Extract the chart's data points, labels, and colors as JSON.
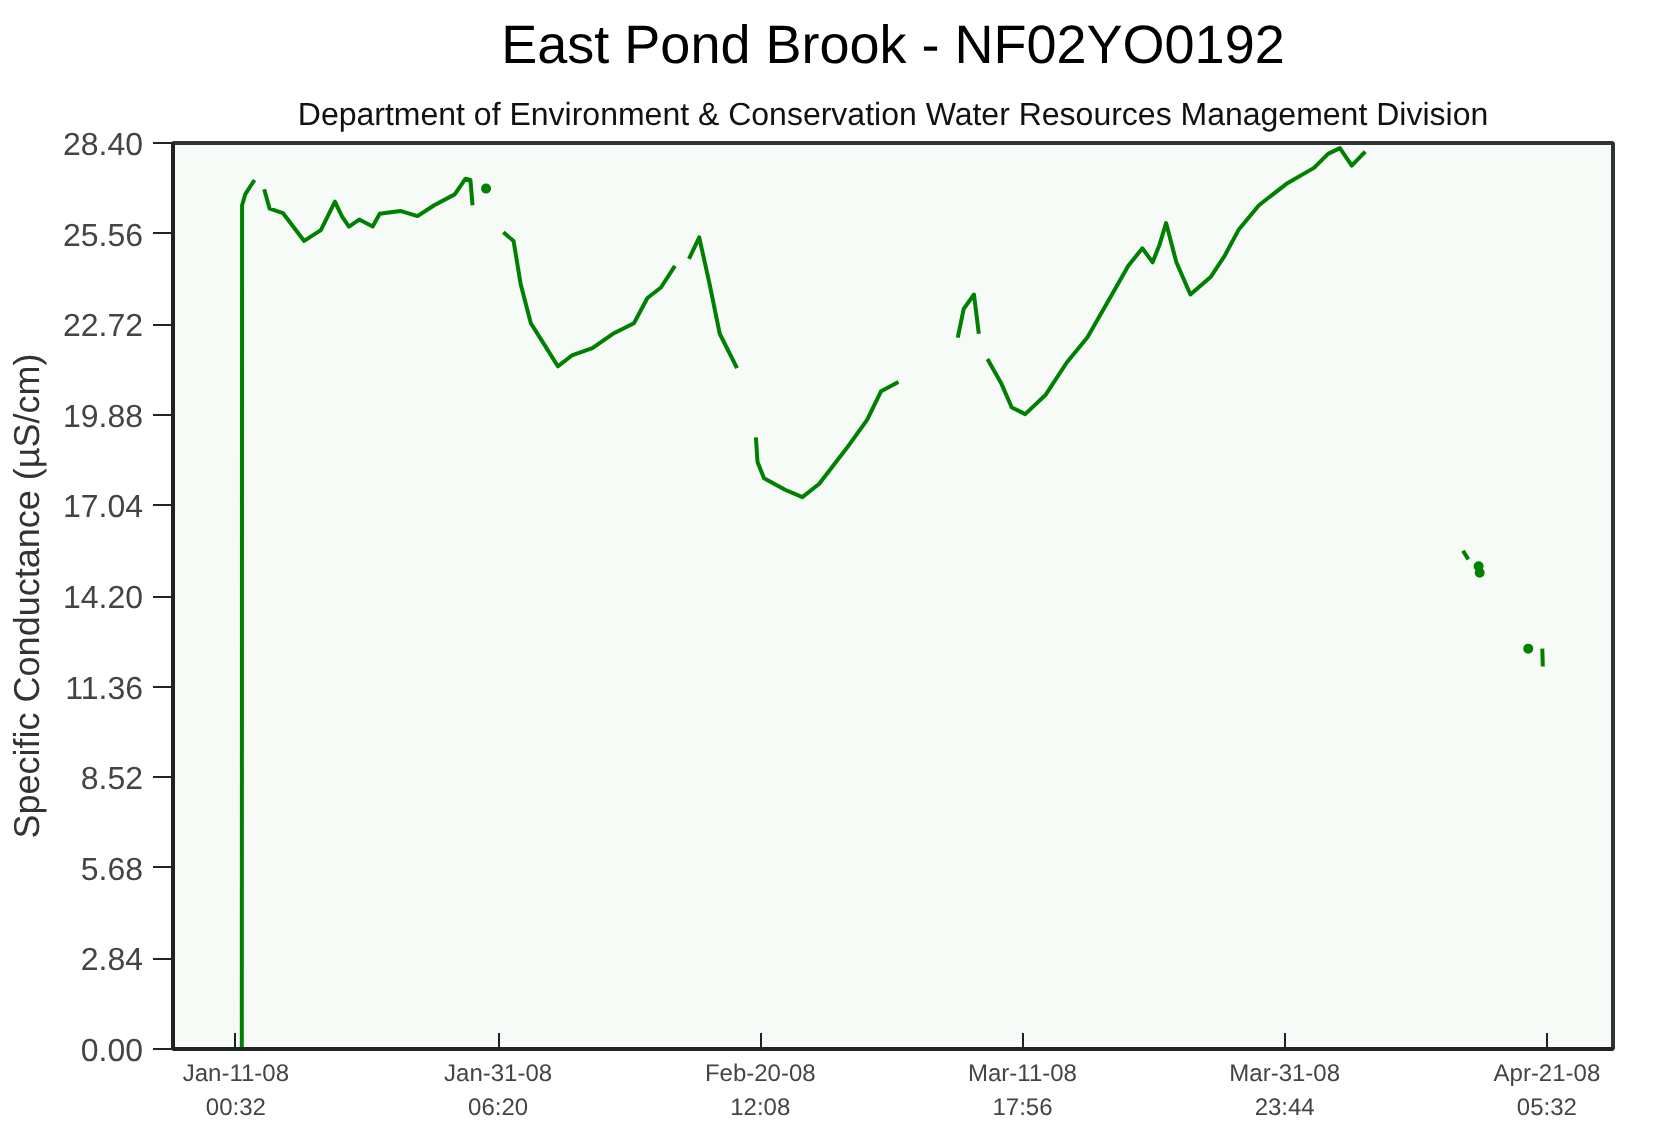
{
  "chart_data": {
    "type": "line",
    "title": "East Pond Brook - NF02YO0192",
    "subtitle": "Department of Environment & Conservation Water Resources Management Division",
    "ylabel": "Specific Conductance (µS/cm)",
    "x": [
      "2008-01-11T11:30",
      "2008-01-11T12:00",
      "2008-01-11T18:00",
      "2008-01-12T11:00",
      "2008-01-12T20:00",
      "2008-01-13T05:00",
      "2008-01-13T15:00",
      "2008-01-14T16:00",
      "2008-01-16T07:00",
      "2008-01-17T14:00",
      "2008-01-18T16:00",
      "2008-01-19T05:00",
      "2008-01-19T18:00",
      "2008-01-20T13:00",
      "2008-01-21T14:00",
      "2008-01-22T03:00",
      "2008-01-23T17:00",
      "2008-01-25T01:00",
      "2008-01-26T08:00",
      "2008-01-27T22:00",
      "2008-01-28T18:00",
      "2008-01-29T03:00",
      "2008-01-29T07:00",
      "2008-01-30T08:00",
      "2008-01-31T16:00",
      "2008-02-01T11:00",
      "2008-02-02T00:00",
      "2008-02-02T19:00",
      "2008-02-03T20:00",
      "2008-02-04T21:00",
      "2008-02-05T23:00",
      "2008-02-07T13:00",
      "2008-02-09T03:00",
      "2008-02-10T18:00",
      "2008-02-11T19:00",
      "2008-02-12T20:00",
      "2008-02-13T22:00",
      "2008-02-14T11:00",
      "2008-02-15T00:00",
      "2008-02-15T19:00",
      "2008-02-16T14:00",
      "2008-02-17T09:00",
      "2008-02-18T17:00",
      "2008-02-19T12:00",
      "2008-02-20T04:00",
      "2008-02-20T07:00",
      "2008-02-20T19:00",
      "2008-02-22T10:00",
      "2008-02-23T18:00",
      "2008-02-25T01:00",
      "2008-02-27T04:00",
      "2008-02-28T18:00",
      "2008-02-29T20:00",
      "2008-03-02T04:00",
      "2008-03-04T12:00",
      "2008-03-06T18:00",
      "2008-03-07T05:00",
      "2008-03-08T00:00",
      "2008-03-08T09:00",
      "2008-03-08T17:00",
      "2008-03-09T01:00",
      "2008-03-10T03:00",
      "2008-03-10T22:00",
      "2008-03-11T23:00",
      "2008-03-13T13:00",
      "2008-03-15T04:00",
      "2008-03-16T18:00",
      "2008-03-18T08:00",
      "2008-03-19T22:00",
      "2008-03-21T00:00",
      "2008-03-21T19:00",
      "2008-03-22T08:00",
      "2008-03-22T20:00",
      "2008-03-23T15:00",
      "2008-03-24T17:00",
      "2008-03-26T07:00",
      "2008-03-27T09:00",
      "2008-03-28T10:00",
      "2008-03-30T00:00",
      "2008-04-01T03:00",
      "2008-04-03T06:00",
      "2008-04-04T08:00",
      "2008-04-05T06:00",
      "2008-04-06T04:00",
      "2008-04-07T05:00",
      "2008-04-10T12:00",
      "2008-04-14T18:00",
      "2008-04-15T04:00",
      "2008-04-17T00:00",
      "2008-04-20T21:00",
      "2008-04-20T22:00"
    ],
    "series": [
      {
        "color": "#008000",
        "values": [
          0,
          26.45,
          26.8,
          27.24,
          null,
          26.95,
          26.34,
          26.2,
          25.33,
          25.67,
          26.56,
          26.1,
          25.78,
          26.0,
          25.78,
          26.18,
          26.27,
          26.11,
          26.45,
          26.79,
          27.28,
          27.24,
          26.45,
          null,
          25.6,
          25.33,
          23.99,
          22.75,
          22.08,
          21.4,
          21.74,
          21.97,
          22.42,
          22.75,
          23.54,
          23.87,
          24.55,
          null,
          24.77,
          25.44,
          23.99,
          22.42,
          21.34,
          null,
          19.17,
          18.4,
          17.89,
          17.53,
          17.3,
          17.71,
          18.83,
          19.72,
          20.62,
          20.91,
          null,
          22.3,
          23.2,
          23.65,
          22.42,
          null,
          21.63,
          20.85,
          20.11,
          19.9,
          20.51,
          21.52,
          22.3,
          23.42,
          24.55,
          25.1,
          24.66,
          25.22,
          25.89,
          24.66,
          23.65,
          24.21,
          24.88,
          25.67,
          26.45,
          27.12,
          27.62,
          28.06,
          28.24,
          27.69,
          28.13,
          null,
          15.62,
          15.35,
          null,
          12.55,
          11.99
        ]
      },
      {
        "type": "scatter",
        "color": "#008000",
        "x": [
          "2008-01-30T08:00",
          "2008-04-15T23:00",
          "2008-04-16T01:00",
          "2008-04-19T19:00"
        ],
        "values": [
          26.97,
          15.13,
          14.93,
          12.55
        ]
      }
    ],
    "xlim": [
      "2008-01-06T04:00",
      "2008-04-26T08:00"
    ],
    "xticks": [
      {
        "value": "2008-01-11T00:32",
        "label": "Jan-11-08\n00:32"
      },
      {
        "value": "2008-01-31T06:20",
        "label": "Jan-31-08\n06:20"
      },
      {
        "value": "2008-02-20T12:08",
        "label": "Feb-20-08\n12:08"
      },
      {
        "value": "2008-03-11T17:56",
        "label": "Mar-11-08\n17:56"
      },
      {
        "value": "2008-03-31T23:44",
        "label": "Mar-31-08\n23:44"
      },
      {
        "value": "2008-04-21T05:32",
        "label": "Apr-21-08\n05:32"
      }
    ],
    "ylim": [
      0,
      28.4
    ],
    "yticks": [
      {
        "value": 0,
        "label": "0.00"
      },
      {
        "value": 2.84,
        "label": "2.84"
      },
      {
        "value": 5.68,
        "label": "5.68"
      },
      {
        "value": 8.52,
        "label": "8.52"
      },
      {
        "value": 11.36,
        "label": "11.36"
      },
      {
        "value": 14.2,
        "label": "14.20"
      },
      {
        "value": 17.04,
        "label": "17.04"
      },
      {
        "value": 19.88,
        "label": "19.88"
      },
      {
        "value": 22.72,
        "label": "22.72"
      },
      {
        "value": 25.56,
        "label": "25.56"
      },
      {
        "value": 28.4,
        "label": "28.40"
      }
    ]
  }
}
